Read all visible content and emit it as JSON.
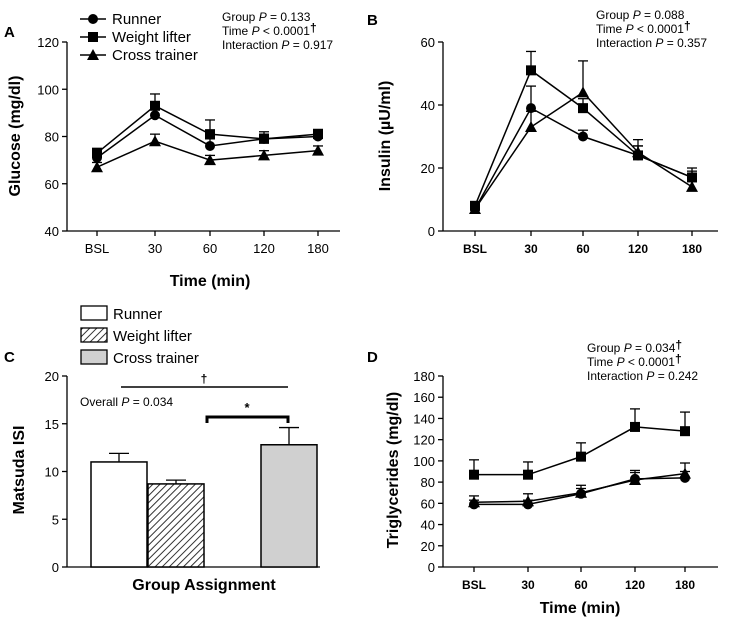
{
  "chart_data": [
    {
      "panel": "A",
      "type": "line",
      "xlabel": "Time (min)",
      "ylabel": "Glucose (mg/dl)",
      "ylim": [
        40,
        120
      ],
      "yticks": [
        40,
        60,
        80,
        100,
        120
      ],
      "categories": [
        "BSL",
        "30",
        "60",
        "120",
        "180"
      ],
      "series": [
        {
          "name": "Runner",
          "marker": "circle",
          "values": [
            71,
            89,
            76,
            79,
            80
          ],
          "errors": [
            2,
            3,
            3,
            2,
            2
          ]
        },
        {
          "name": "Weight lifter",
          "marker": "square",
          "values": [
            73,
            93,
            81,
            79,
            81
          ],
          "errors": [
            2,
            5,
            6,
            3,
            2
          ]
        },
        {
          "name": "Cross trainer",
          "marker": "triangle",
          "values": [
            67,
            78,
            70,
            72,
            74
          ],
          "errors": [
            2,
            3,
            2,
            2,
            2
          ]
        }
      ],
      "stats": [
        {
          "label": "Group",
          "value": "= 0.133",
          "dagger": false
        },
        {
          "label": "Time",
          "value": "< 0.0001",
          "dagger": true
        },
        {
          "label": "Interaction",
          "value": "= 0.917",
          "dagger": false
        }
      ],
      "legend": [
        "Runner",
        "Weight lifter",
        "Cross trainer"
      ],
      "legend_position": "top-left"
    },
    {
      "panel": "B",
      "type": "line",
      "xlabel": "",
      "ylabel": "Insulin (µU/ml)",
      "ylim": [
        0,
        60
      ],
      "yticks": [
        0,
        20,
        40,
        60
      ],
      "categories": [
        "BSL",
        "30",
        "60",
        "120",
        "180"
      ],
      "series": [
        {
          "name": "Runner",
          "marker": "circle",
          "values": [
            7,
            39,
            30,
            24,
            17
          ],
          "errors": [
            1,
            7,
            2,
            3,
            2
          ]
        },
        {
          "name": "Weight lifter",
          "marker": "square",
          "values": [
            8,
            51,
            39,
            24,
            17
          ],
          "errors": [
            1,
            6,
            3,
            3,
            3
          ]
        },
        {
          "name": "Cross trainer",
          "marker": "triangle",
          "values": [
            7,
            33,
            44,
            25,
            14
          ],
          "errors": [
            1,
            5,
            10,
            4,
            2
          ]
        }
      ],
      "stats": [
        {
          "label": "Group",
          "value": "= 0.088",
          "dagger": false
        },
        {
          "label": "Time",
          "value": "< 0.0001",
          "dagger": true
        },
        {
          "label": "Interaction",
          "value": "= 0.357",
          "dagger": false
        }
      ]
    },
    {
      "panel": "C",
      "type": "bar",
      "xlabel": "Group Assignment",
      "ylabel": "Matsuda ISI",
      "ylim": [
        0,
        20
      ],
      "yticks": [
        0,
        5,
        10,
        15,
        20
      ],
      "categories": [
        "Runner",
        "Weight lifter",
        "Cross trainer"
      ],
      "values": [
        11.0,
        8.7,
        12.8
      ],
      "errors": [
        0.9,
        0.4,
        1.8
      ],
      "fills": [
        "#ffffff",
        "hatch",
        "#d0d0d0"
      ],
      "legend": [
        "Runner",
        "Weight lifter",
        "Cross trainer"
      ],
      "annotations": {
        "overall": "Overall",
        "overall_value": "= 0.034",
        "dagger": "†",
        "star": "*"
      }
    },
    {
      "panel": "D",
      "type": "line",
      "xlabel": "Time (min)",
      "ylabel": "Triglycerides (mg/dl)",
      "ylim": [
        0,
        180
      ],
      "yticks": [
        0,
        20,
        40,
        60,
        80,
        100,
        120,
        140,
        160,
        180
      ],
      "categories": [
        "BSL",
        "30",
        "60",
        "120",
        "180"
      ],
      "series": [
        {
          "name": "Runner",
          "marker": "circle",
          "values": [
            59,
            59,
            69,
            83,
            84
          ],
          "errors": [
            4,
            4,
            5,
            6,
            6
          ]
        },
        {
          "name": "Weight lifter",
          "marker": "square",
          "values": [
            87,
            87,
            104,
            132,
            128
          ],
          "errors": [
            14,
            12,
            13,
            17,
            18
          ]
        },
        {
          "name": "Cross trainer",
          "marker": "triangle",
          "values": [
            61,
            62,
            70,
            82,
            88
          ],
          "errors": [
            6,
            7,
            7,
            9,
            10
          ]
        }
      ],
      "stats": [
        {
          "label": "Group",
          "value": "= 0.034",
          "dagger": true
        },
        {
          "label": "Time",
          "value": "< 0.0001",
          "dagger": true
        },
        {
          "label": "Interaction",
          "value": "= 0.242",
          "dagger": false
        }
      ]
    }
  ],
  "panel_labels": [
    "A",
    "B",
    "C",
    "D"
  ],
  "p_symbol": "P",
  "dagger": "†"
}
